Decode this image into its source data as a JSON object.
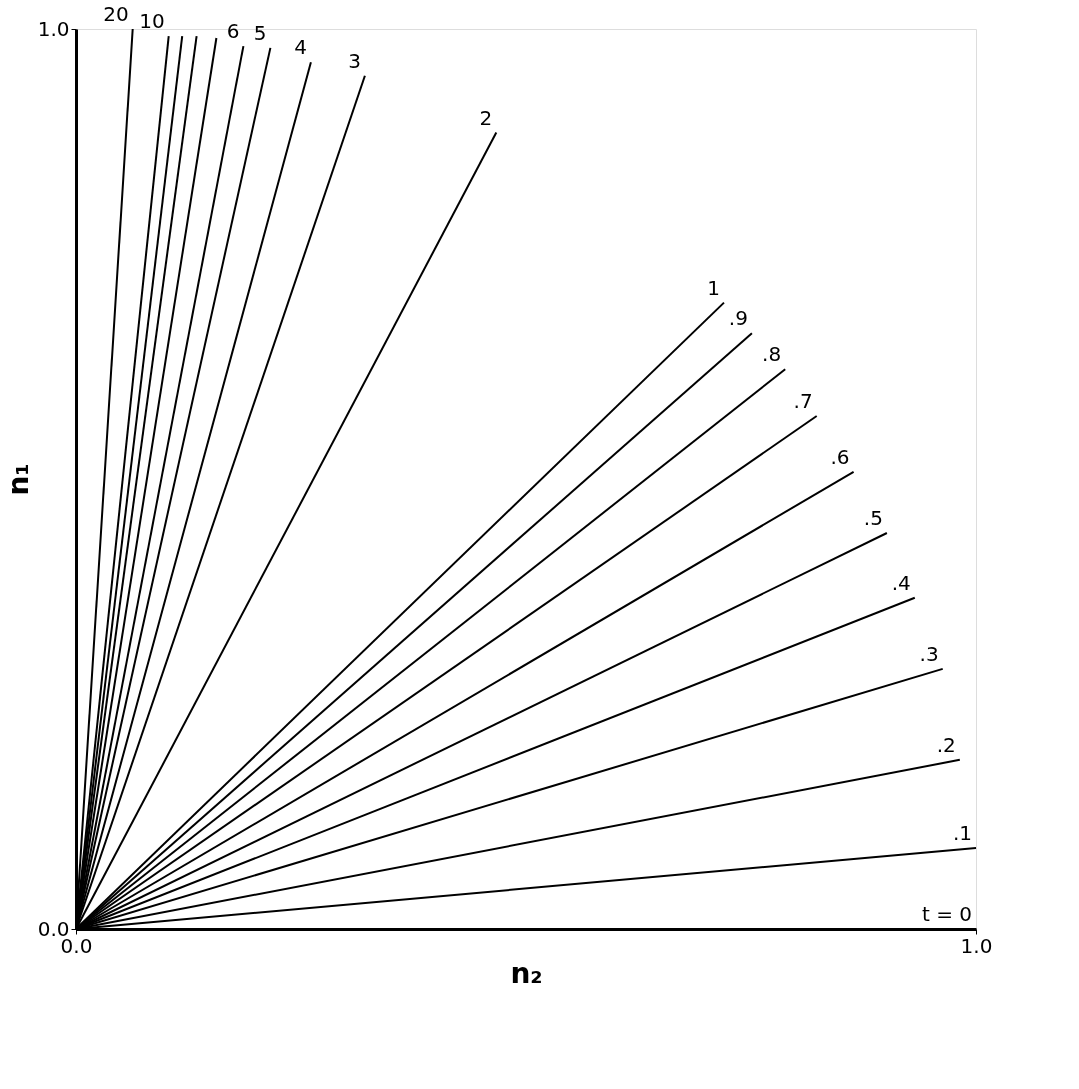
{
  "chart_data": {
    "type": "line",
    "xlabel": "n₂",
    "ylabel": "n₁",
    "xlim": [
      0,
      1
    ],
    "ylim": [
      0,
      1
    ],
    "xticks": [
      {
        "value": 0,
        "label": "0.0"
      },
      {
        "value": 1,
        "label": "1.0"
      }
    ],
    "yticks": [
      {
        "value": 0,
        "label": "0.0"
      },
      {
        "value": 1,
        "label": "1.0"
      }
    ],
    "grid": false,
    "marker": "none",
    "line_style": "solid",
    "series": [
      {
        "name": "t = 0",
        "color": "#000000",
        "x": [
          0,
          1.0
        ],
        "values": [
          0,
          0
        ]
      },
      {
        "name": "20",
        "color": "#000000",
        "x": [
          0,
          0.063
        ],
        "values": [
          0,
          1.0
        ]
      },
      {
        "name": "10",
        "color": "#000000",
        "x": [
          0,
          0.103
        ],
        "values": [
          0,
          0.992
        ]
      },
      {
        "color": "#000000",
        "x": [
          0,
          0.118
        ],
        "values": [
          0,
          0.992
        ]
      },
      {
        "color": "#000000",
        "x": [
          0,
          0.134
        ],
        "values": [
          0,
          0.992
        ]
      },
      {
        "color": "#000000",
        "x": [
          0,
          0.156
        ],
        "values": [
          0,
          0.99
        ]
      },
      {
        "name": "6",
        "color": "#000000",
        "x": [
          0,
          0.186
        ],
        "values": [
          0,
          0.981
        ]
      },
      {
        "name": "5",
        "color": "#000000",
        "x": [
          0,
          0.216
        ],
        "values": [
          0,
          0.979
        ]
      },
      {
        "name": "4",
        "color": "#000000",
        "x": [
          0,
          0.261
        ],
        "values": [
          0,
          0.963
        ]
      },
      {
        "name": "3",
        "color": "#000000",
        "x": [
          0,
          0.321
        ],
        "values": [
          0,
          0.948
        ]
      },
      {
        "name": "2",
        "color": "#000000",
        "x": [
          0,
          0.467
        ],
        "values": [
          0,
          0.885
        ]
      },
      {
        "name": "1",
        "color": "#000000",
        "x": [
          0,
          0.72
        ],
        "values": [
          0,
          0.696
        ]
      },
      {
        "name": ".9",
        "color": "#000000",
        "x": [
          0,
          0.751
        ],
        "values": [
          0,
          0.662
        ]
      },
      {
        "name": ".8",
        "color": "#000000",
        "x": [
          0,
          0.788
        ],
        "values": [
          0,
          0.622
        ]
      },
      {
        "name": ".7",
        "color": "#000000",
        "x": [
          0,
          0.823
        ],
        "values": [
          0,
          0.57
        ]
      },
      {
        "name": ".6",
        "color": "#000000",
        "x": [
          0,
          0.864
        ],
        "values": [
          0,
          0.508
        ]
      },
      {
        "name": ".5",
        "color": "#000000",
        "x": [
          0,
          0.901
        ],
        "values": [
          0,
          0.44
        ]
      },
      {
        "name": ".4",
        "color": "#000000",
        "x": [
          0,
          0.932
        ],
        "values": [
          0,
          0.368
        ]
      },
      {
        "name": ".3",
        "color": "#000000",
        "x": [
          0,
          0.963
        ],
        "values": [
          0,
          0.289
        ]
      },
      {
        "name": ".2",
        "color": "#000000",
        "x": [
          0,
          0.982
        ],
        "values": [
          0,
          0.188
        ]
      },
      {
        "name": ".1",
        "color": "#000000",
        "x": [
          0,
          1.0
        ],
        "values": [
          0,
          0.09
        ]
      }
    ]
  }
}
